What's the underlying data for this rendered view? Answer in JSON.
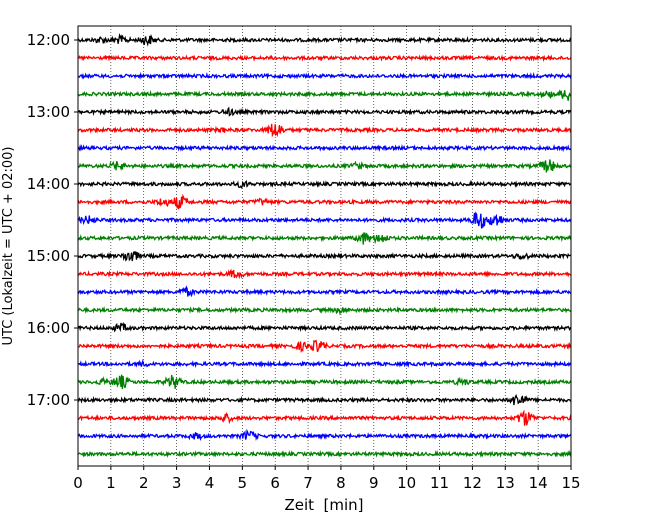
{
  "chart_data": {
    "type": "line",
    "title": "",
    "xlabel": "Zeit  [min]",
    "ylabel": "UTC (Lokalzeit = UTC + 02:00)",
    "xlim": [
      0,
      15
    ],
    "x_ticks": [
      0,
      1,
      2,
      3,
      4,
      5,
      6,
      7,
      8,
      9,
      10,
      11,
      12,
      13,
      14,
      15
    ],
    "y_tick_labels": [
      "12:00",
      "13:00",
      "14:00",
      "15:00",
      "16:00",
      "17:00"
    ],
    "y_tick_trace_index": [
      0,
      4,
      8,
      12,
      16,
      20
    ],
    "grid": "vertical dotted at each minute",
    "color_cycle": [
      "#000000",
      "#ff0000",
      "#0000ff",
      "#008000"
    ],
    "traces": [
      {
        "label": "12:00",
        "events": [
          [
            1.3,
            4
          ],
          [
            2.1,
            5
          ],
          [
            0.7,
            3
          ]
        ]
      },
      {
        "label": "12:15",
        "events": []
      },
      {
        "label": "12:30",
        "events": []
      },
      {
        "label": "12:45",
        "events": [
          [
            14.9,
            7
          ],
          [
            14.3,
            3
          ]
        ]
      },
      {
        "label": "13:00",
        "events": [
          [
            4.6,
            3
          ]
        ]
      },
      {
        "label": "13:15",
        "events": [
          [
            6.0,
            8
          ],
          [
            4.4,
            2
          ]
        ]
      },
      {
        "label": "13:30",
        "events": []
      },
      {
        "label": "13:45",
        "events": [
          [
            1.2,
            4
          ],
          [
            14.3,
            7
          ],
          [
            8.5,
            3
          ]
        ]
      },
      {
        "label": "14:00",
        "events": [
          [
            5.0,
            3
          ]
        ]
      },
      {
        "label": "14:15",
        "events": [
          [
            3.1,
            7
          ],
          [
            2.6,
            4
          ],
          [
            5.6,
            3
          ]
        ]
      },
      {
        "label": "14:30",
        "events": [
          [
            12.2,
            10
          ],
          [
            0.3,
            4
          ],
          [
            12.7,
            7
          ]
        ]
      },
      {
        "label": "14:45",
        "events": [
          [
            8.7,
            6
          ],
          [
            9.2,
            5
          ]
        ]
      },
      {
        "label": "15:00",
        "events": [
          [
            1.6,
            7
          ],
          [
            13.5,
            3
          ]
        ]
      },
      {
        "label": "15:15",
        "events": [
          [
            4.8,
            4
          ]
        ]
      },
      {
        "label": "15:30",
        "events": [
          [
            3.3,
            4
          ]
        ]
      },
      {
        "label": "15:45",
        "events": [
          [
            8.0,
            3
          ]
        ]
      },
      {
        "label": "16:00",
        "events": [
          [
            1.3,
            4
          ]
        ]
      },
      {
        "label": "16:15",
        "events": [
          [
            7.3,
            6
          ],
          [
            6.8,
            4
          ]
        ]
      },
      {
        "label": "16:30",
        "events": [
          [
            2.0,
            2
          ]
        ]
      },
      {
        "label": "16:45",
        "events": [
          [
            1.3,
            7
          ],
          [
            2.9,
            7
          ],
          [
            11.7,
            3
          ],
          [
            0.8,
            3
          ]
        ]
      },
      {
        "label": "17:00",
        "events": [
          [
            13.4,
            7
          ]
        ]
      },
      {
        "label": "17:15",
        "events": [
          [
            13.6,
            8
          ],
          [
            4.5,
            4
          ]
        ]
      },
      {
        "label": "17:30",
        "events": [
          [
            5.2,
            5
          ],
          [
            3.6,
            3
          ]
        ]
      },
      {
        "label": "17:45",
        "events": []
      }
    ]
  }
}
